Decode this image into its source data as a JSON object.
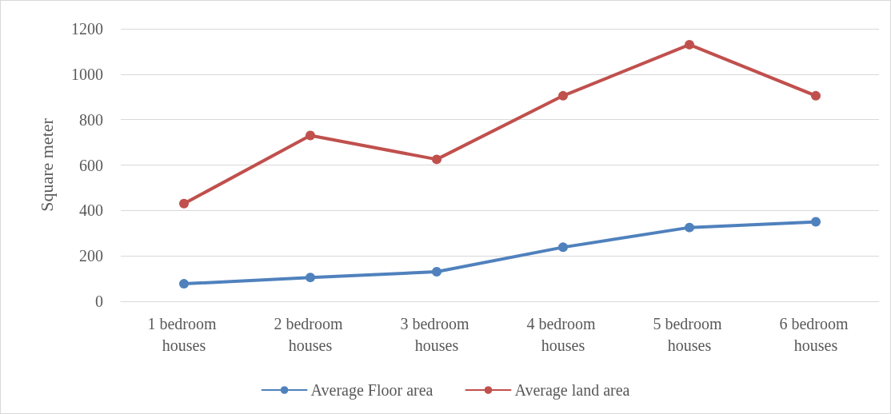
{
  "chart_data": {
    "type": "line",
    "ylabel": "Square meter",
    "categories": [
      "1 bedroom houses",
      "2 bedroom houses",
      "3 bedroom houses",
      "4 bedroom houses",
      "5 bedroom houses",
      "6 bedroom houses"
    ],
    "series": [
      {
        "name": "Average Floor area",
        "color": "#4f81bd",
        "values": [
          77,
          105,
          130,
          238,
          325,
          350
        ]
      },
      {
        "name": "Average land area",
        "color": "#c0504d",
        "values": [
          430,
          730,
          625,
          905,
          1130,
          905
        ]
      }
    ],
    "ylim": [
      0,
      1200
    ],
    "yticks": [
      0,
      200,
      400,
      600,
      800,
      1000,
      1200
    ],
    "grid": "y",
    "legend": "bottom",
    "marker": "circle",
    "line_style": "solid"
  }
}
